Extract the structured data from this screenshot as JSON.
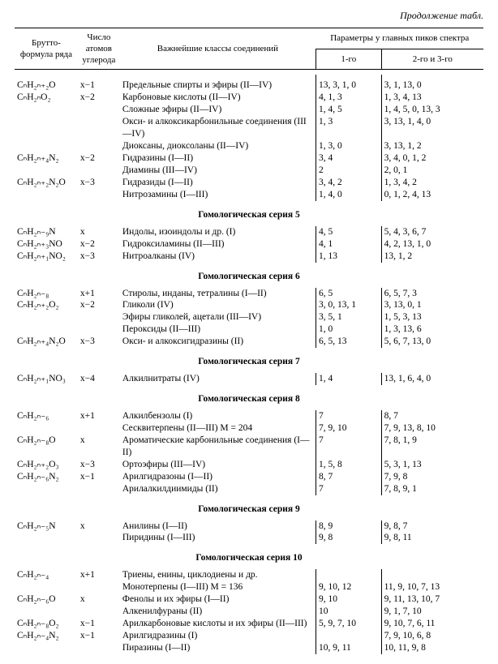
{
  "continuation": "Продолжение табл.",
  "headers": {
    "formula": "Брутто-формула ряда",
    "atoms": "Число атомов углерода",
    "classes": "Важнейшие классы соединений",
    "params": "Параметры у главных пиков спектра",
    "c1": "1-го",
    "c2": "2-го и 3-го"
  },
  "sections": [
    {
      "title": null,
      "rows": [
        {
          "f": "CₙH₂ₙ₊₂O",
          "a": "x−1",
          "c": "Предельные спирты и эфиры (II—IV)",
          "p1": "13, 3, 1, 0",
          "p2": "3, 1, 13, 0"
        },
        {
          "f": "CₙH₂ₙO₂",
          "a": "x−2",
          "c": "Карбоновые кислоты (II—IV)",
          "p1": "4, 1, 3",
          "p2": "1, 3, 4, 13"
        },
        {
          "f": "",
          "a": "",
          "c": "Сложные эфиры (II—IV)",
          "p1": "1, 4, 5",
          "p2": "1, 4, 5, 0, 13, 3"
        },
        {
          "f": "",
          "a": "",
          "c": "Окси- и алкоксикарбонильные соединения (III—IV)",
          "p1": "1, 3",
          "p2": "3, 13, 1, 4, 0"
        },
        {
          "f": "",
          "a": "",
          "c": "Диоксаны, диоксоланы (II—IV)",
          "p1": "1, 3, 0",
          "p2": "3, 13, 1, 2"
        },
        {
          "f": "CₙH₂ₙ₊₄N₂",
          "a": "x−2",
          "c": "Гидразины (I—II)",
          "p1": "3, 4",
          "p2": "3, 4, 0, 1, 2"
        },
        {
          "f": "",
          "a": "",
          "c": "Диамины (III—IV)",
          "p1": "2",
          "p2": "2, 0, 1"
        },
        {
          "f": "CₙH₂ₙ₊₂N₂O",
          "a": "x−3",
          "c": "Гидразиды (I—II)",
          "p1": "3, 4, 2",
          "p2": "1, 3, 4, 2"
        },
        {
          "f": "",
          "a": "",
          "c": "Нитрозамины (I—III)",
          "p1": "1, 4, 0",
          "p2": "0, 1, 2, 4, 13"
        }
      ]
    },
    {
      "title": "Гомологическая серия 5",
      "rows": [
        {
          "f": "CₙH₂ₙ₋₉N",
          "a": "x",
          "c": "Индолы, изоиндолы и др. (I)",
          "p1": "4, 5",
          "p2": "5, 4, 3, 6, 7"
        },
        {
          "f": "CₙH₂ₙ₊₃NO",
          "a": "x−2",
          "c": "Гидроксиламины (II—III)",
          "p1": "4, 1",
          "p2": "4, 2, 13, 1, 0"
        },
        {
          "f": "CₙH₂ₙ₊₁NO₂",
          "a": "x−3",
          "c": "Нитроалканы (IV)",
          "p1": "1, 13",
          "p2": "13, 1, 2"
        }
      ]
    },
    {
      "title": "Гомологическая серия 6",
      "rows": [
        {
          "f": "CₙH₂ₙ₋₈",
          "a": "x+1",
          "c": "Стиролы, инданы, тетралины (I—II)",
          "p1": "6, 5",
          "p2": "6, 5, 7, 3"
        },
        {
          "f": "CₙH₂ₙ₊₂O₂",
          "a": "x−2",
          "c": "Гликоли (IV)",
          "p1": "3, 0, 13, 1",
          "p2": "3, 13, 0, 1"
        },
        {
          "f": "",
          "a": "",
          "c": "Эфиры гликолей, ацетали (III—IV)",
          "p1": "3, 5, 1",
          "p2": "1, 5, 3, 13"
        },
        {
          "f": "",
          "a": "",
          "c": "Пероксиды (II—III)",
          "p1": "1, 0",
          "p2": "1, 3, 13, 6"
        },
        {
          "f": "CₙH₂ₙ₊₄N₂O",
          "a": "x−3",
          "c": "Окси- и алкоксигидразины (II)",
          "p1": "6, 5, 13",
          "p2": "5, 6, 7, 13, 0"
        }
      ]
    },
    {
      "title": "Гомологическая серия 7",
      "rows": [
        {
          "f": "CₙH₂ₙ₊₁NO₃",
          "a": "x−4",
          "c": "Алкилнитраты (IV)",
          "p1": "1, 4",
          "p2": "13, 1, 6, 4, 0"
        }
      ]
    },
    {
      "title": "Гомологическая серия 8",
      "rows": [
        {
          "f": "CₙH₂ₙ₋₆",
          "a": "x+1",
          "c": "Алкилбензолы (I)",
          "p1": "7",
          "p2": "8, 7"
        },
        {
          "f": "",
          "a": "",
          "c": "Сесквитерпены (II—III)  M = 204",
          "p1": "7, 9, 10",
          "p2": "7, 9, 13, 8, 10"
        },
        {
          "f": "CₙH₂ₙ₋₈O",
          "a": "x",
          "c": "Ароматические карбонильные соединения (I—II)",
          "p1": "7",
          "p2": "7, 8, 1, 9"
        },
        {
          "f": "CₙH₂ₙ₊₂O₃",
          "a": "x−3",
          "c": "Ортоэфиры (III—IV)",
          "p1": "1, 5, 8",
          "p2": "5, 3, 1, 13"
        },
        {
          "f": "CₙH₂ₙ₋₆N₂",
          "a": "x−1",
          "c": "Арилгидразоны (I—II)",
          "p1": "8, 7",
          "p2": "7, 9, 8"
        },
        {
          "f": "",
          "a": "",
          "c": "Арилалкилдиимиды (II)",
          "p1": "7",
          "p2": "7, 8, 9, 1"
        }
      ]
    },
    {
      "title": "Гомологическая серия 9",
      "rows": [
        {
          "f": "CₙH₂ₙ₋₅N",
          "a": "x",
          "c": "Анилины (I—II)",
          "p1": "8, 9",
          "p2": "9, 8, 7"
        },
        {
          "f": "",
          "a": "",
          "c": "Пиридины (I—III)",
          "p1": "9, 8",
          "p2": "9, 8, 11"
        }
      ]
    },
    {
      "title": "Гомологическая серия 10",
      "rows": [
        {
          "f": "CₙH₂ₙ₋₄",
          "a": "x+1",
          "c": "Триены, енины, циклодиены и др.",
          "p1": "",
          "p2": ""
        },
        {
          "f": "",
          "a": "",
          "c": "Монотерпены (I—III)  M = 136",
          "p1": "9, 10, 12",
          "p2": "11, 9, 10, 7, 13"
        },
        {
          "f": "CₙH₂ₙ₋₆O",
          "a": "x",
          "c": "Фенолы и их эфиры (I—II)",
          "p1": "9, 10",
          "p2": "9, 11, 13, 10, 7"
        },
        {
          "f": "",
          "a": "",
          "c": "Алкенилфураны (II)",
          "p1": "10",
          "p2": "9, 1, 7, 10"
        },
        {
          "f": "CₙH₂ₙ₋₈O₂",
          "a": "x−1",
          "c": "Арилкарбоновые кислоты и их эфиры (II—III)",
          "p1": "5, 9, 7, 10",
          "p2": "9, 10, 7, 6, 11"
        },
        {
          "f": "CₙH₂ₙ₋₄N₂",
          "a": "x−1",
          "c": "Арилгидразины (I)",
          "p1": "",
          "p2": "7, 9, 10, 6, 8"
        },
        {
          "f": "",
          "a": "",
          "c": "Пиразины (I—II)",
          "p1": "10, 9, 11",
          "p2": "10, 11, 9, 8"
        }
      ]
    }
  ]
}
